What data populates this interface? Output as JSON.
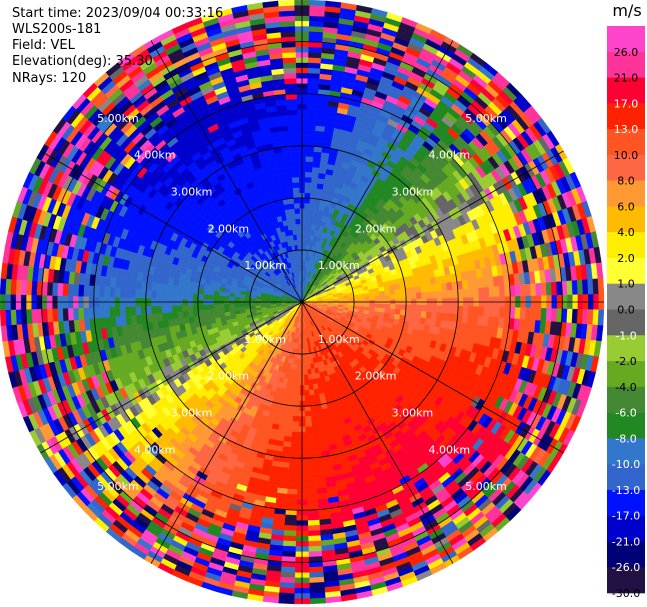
{
  "header": {
    "start_time": "Start time: 2023/09/04 00:33:16",
    "instrument": "WLS200s-181",
    "field": "Field: VEL",
    "elevation": "Elevation(deg): 35.30",
    "nrays": "NRays: 120"
  },
  "chart_data": {
    "type": "heatmap",
    "projection": "polar-ppi",
    "field": "VEL",
    "units": "m/s",
    "nrays": 120,
    "max_range_km": 5.8,
    "range_rings_km": [
      1,
      2,
      3,
      4,
      5
    ],
    "ring_labels": [
      "1.00km",
      "2.00km",
      "3.00km",
      "4.00km",
      "5.00km"
    ],
    "spokes_deg": [
      0,
      30,
      60,
      90,
      120,
      150,
      180,
      210,
      240,
      270,
      300,
      330
    ],
    "pattern": {
      "approaching_core_azimuth_deg": 340,
      "receding_core_azimuth_deg": 150,
      "core_speed_ms": 11,
      "speed_increase_per_km": 4,
      "noise_start_km": 3.6
    },
    "colorbar": {
      "unit_label": "m/s",
      "ticks": [
        "26.0",
        "21.0",
        "17.0",
        "13.0",
        "10.0",
        "8.0",
        "6.0",
        "4.0",
        "2.0",
        "1.0",
        "0.0",
        "-1.0",
        "-2.0",
        "-4.0",
        "-6.0",
        "-8.0",
        "-10.0",
        "-13.0",
        "-17.0",
        "-21.0",
        "-26.0",
        "-30.0"
      ],
      "bins": [
        {
          "min": 26,
          "max": 30,
          "color": "#ff44cc"
        },
        {
          "min": 21,
          "max": 26,
          "color": "#ff3399"
        },
        {
          "min": 17,
          "max": 21,
          "color": "#ff0033"
        },
        {
          "min": 13,
          "max": 17,
          "color": "#ff2200"
        },
        {
          "min": 10,
          "max": 13,
          "color": "#ff5522"
        },
        {
          "min": 8,
          "max": 10,
          "color": "#ff6644"
        },
        {
          "min": 6,
          "max": 8,
          "color": "#ff9933"
        },
        {
          "min": 4,
          "max": 6,
          "color": "#ffbb00"
        },
        {
          "min": 2,
          "max": 4,
          "color": "#ffee00"
        },
        {
          "min": 1,
          "max": 2,
          "color": "#ffff33"
        },
        {
          "min": 0,
          "max": 1,
          "color": "#888888"
        },
        {
          "min": -1,
          "max": 0,
          "color": "#666666"
        },
        {
          "min": -2,
          "max": -1,
          "color": "#99cc33"
        },
        {
          "min": -4,
          "max": -2,
          "color": "#66aa22"
        },
        {
          "min": -6,
          "max": -4,
          "color": "#448833"
        },
        {
          "min": -8,
          "max": -6,
          "color": "#228822"
        },
        {
          "min": -10,
          "max": -8,
          "color": "#3377cc"
        },
        {
          "min": -13,
          "max": -10,
          "color": "#3366cc"
        },
        {
          "min": -17,
          "max": -13,
          "color": "#0011ff"
        },
        {
          "min": -21,
          "max": -17,
          "color": "#0000cc"
        },
        {
          "min": -26,
          "max": -21,
          "color": "#000077"
        },
        {
          "min": -30,
          "max": -26,
          "color": "#221144"
        }
      ]
    }
  }
}
